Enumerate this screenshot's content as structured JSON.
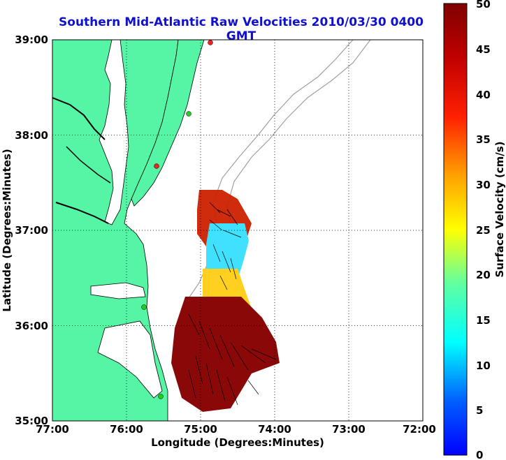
{
  "title": "Southern Mid-Atlantic Raw Velocities 2010/03/30 0400 GMT",
  "xlabel": "Longitude (Degrees:Minutes)",
  "ylabel": "Latitude (Degrees:Minutes)",
  "colorbar_label": "Surface Velocity (cm/s)",
  "x_ticks": [
    "77:00",
    "76:00",
    "75:00",
    "74:00",
    "73:00",
    "72:00"
  ],
  "y_ticks": [
    "39:00",
    "38:00",
    "37:00",
    "36:00",
    "35:00"
  ],
  "colorbar_ticks": [
    "50",
    "45",
    "40",
    "35",
    "30",
    "25",
    "20",
    "15",
    "10",
    "5",
    "0"
  ],
  "colors": {
    "land": "#55f5a5",
    "coastline": "#000000",
    "bathymetry": "#a0a0a0",
    "title": "#1010d0",
    "station_green": "#22cc22",
    "station_red": "#ee2222"
  },
  "chart_data": {
    "type": "heatmap",
    "xlim": [
      -77,
      -72
    ],
    "ylim": [
      35,
      39
    ],
    "clim": [
      0,
      50
    ],
    "colormap": "jet"
  }
}
